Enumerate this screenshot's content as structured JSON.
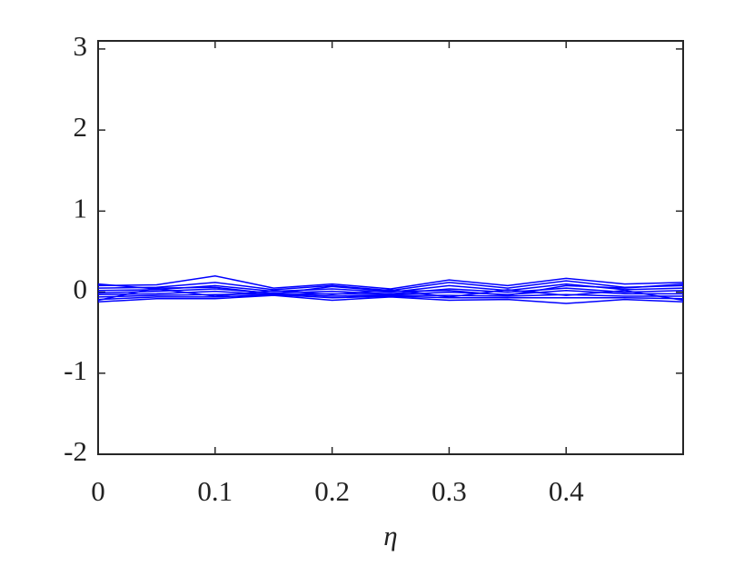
{
  "chart_data": {
    "type": "line",
    "xlabel": "η",
    "x": [
      0,
      0.05,
      0.1,
      0.15,
      0.2,
      0.25,
      0.3,
      0.35,
      0.4,
      0.45,
      0.5
    ],
    "color": "#0000ff",
    "series": [
      {
        "values": [
          0.08,
          0.09,
          0.2,
          0.05,
          0.1,
          0.04,
          0.15,
          0.08,
          0.17,
          0.1,
          0.12
        ]
      },
      {
        "values": [
          0.05,
          0.06,
          0.12,
          0.03,
          0.08,
          0.02,
          0.12,
          0.05,
          0.14,
          0.06,
          0.08
        ]
      },
      {
        "values": [
          0.02,
          0.03,
          0.08,
          0.01,
          0.04,
          0.0,
          0.08,
          0.02,
          0.1,
          0.03,
          0.05
        ]
      },
      {
        "values": [
          -0.01,
          0.01,
          0.04,
          -0.01,
          0.01,
          -0.02,
          0.04,
          0.0,
          0.05,
          0.0,
          0.02
        ]
      },
      {
        "values": [
          -0.03,
          -0.02,
          0.01,
          -0.03,
          -0.02,
          -0.03,
          0.0,
          -0.03,
          0.02,
          -0.02,
          -0.02
        ]
      },
      {
        "values": [
          -0.06,
          -0.04,
          -0.03,
          -0.02,
          -0.05,
          -0.04,
          -0.04,
          -0.05,
          -0.03,
          -0.05,
          -0.05
        ]
      },
      {
        "values": [
          -0.09,
          -0.06,
          -0.06,
          -0.03,
          -0.07,
          -0.05,
          -0.07,
          -0.07,
          -0.07,
          -0.07,
          -0.08
        ]
      },
      {
        "values": [
          -0.12,
          -0.08,
          -0.08,
          -0.04,
          -0.1,
          -0.06,
          -0.1,
          -0.09,
          -0.14,
          -0.09,
          -0.12
        ]
      },
      {
        "values": [
          0.1,
          0.04,
          -0.05,
          0.02,
          -0.03,
          0.03,
          -0.06,
          0.03,
          -0.04,
          0.02,
          -0.1
        ]
      },
      {
        "values": [
          -0.1,
          0.05,
          0.06,
          -0.02,
          0.07,
          0.01,
          0.02,
          -0.04,
          0.08,
          0.05,
          0.1
        ]
      }
    ],
    "xlim": [
      0,
      0.5
    ],
    "ylim": [
      -2,
      3.1
    ],
    "xticks": [
      0,
      0.1,
      0.2,
      0.3,
      0.4
    ],
    "yticks": [
      -2,
      -1,
      0,
      1,
      2,
      3
    ]
  }
}
